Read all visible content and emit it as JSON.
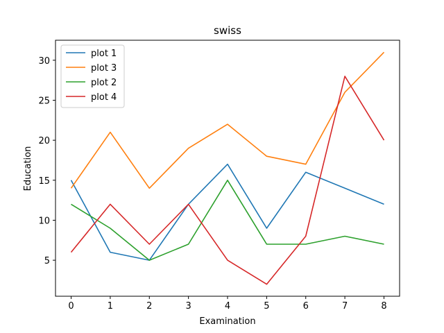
{
  "chart_data": {
    "type": "line",
    "title": "swiss",
    "xlabel": "Examination",
    "ylabel": "Education",
    "x": [
      0,
      1,
      2,
      3,
      4,
      5,
      6,
      7,
      8
    ],
    "xlim": [
      -0.4,
      8.4
    ],
    "ylim": [
      0.5,
      32.5
    ],
    "xticks": [
      0,
      1,
      2,
      3,
      4,
      5,
      6,
      7,
      8
    ],
    "yticks": [
      5,
      10,
      15,
      20,
      25,
      30
    ],
    "grid": false,
    "legend_position": "top-left",
    "series": [
      {
        "name": "plot 1",
        "color": "#1f77b4",
        "values": [
          15,
          6,
          5,
          12,
          17,
          9,
          16,
          14,
          12
        ]
      },
      {
        "name": "plot 3",
        "color": "#ff7f0e",
        "values": [
          14,
          21,
          14,
          19,
          22,
          18,
          17,
          26,
          31
        ]
      },
      {
        "name": "plot 2",
        "color": "#2ca02c",
        "values": [
          12,
          9,
          5,
          7,
          15,
          7,
          7,
          8,
          7
        ]
      },
      {
        "name": "plot 4",
        "color": "#d62728",
        "values": [
          6,
          12,
          7,
          12,
          5,
          2,
          8,
          28,
          20
        ]
      }
    ]
  }
}
